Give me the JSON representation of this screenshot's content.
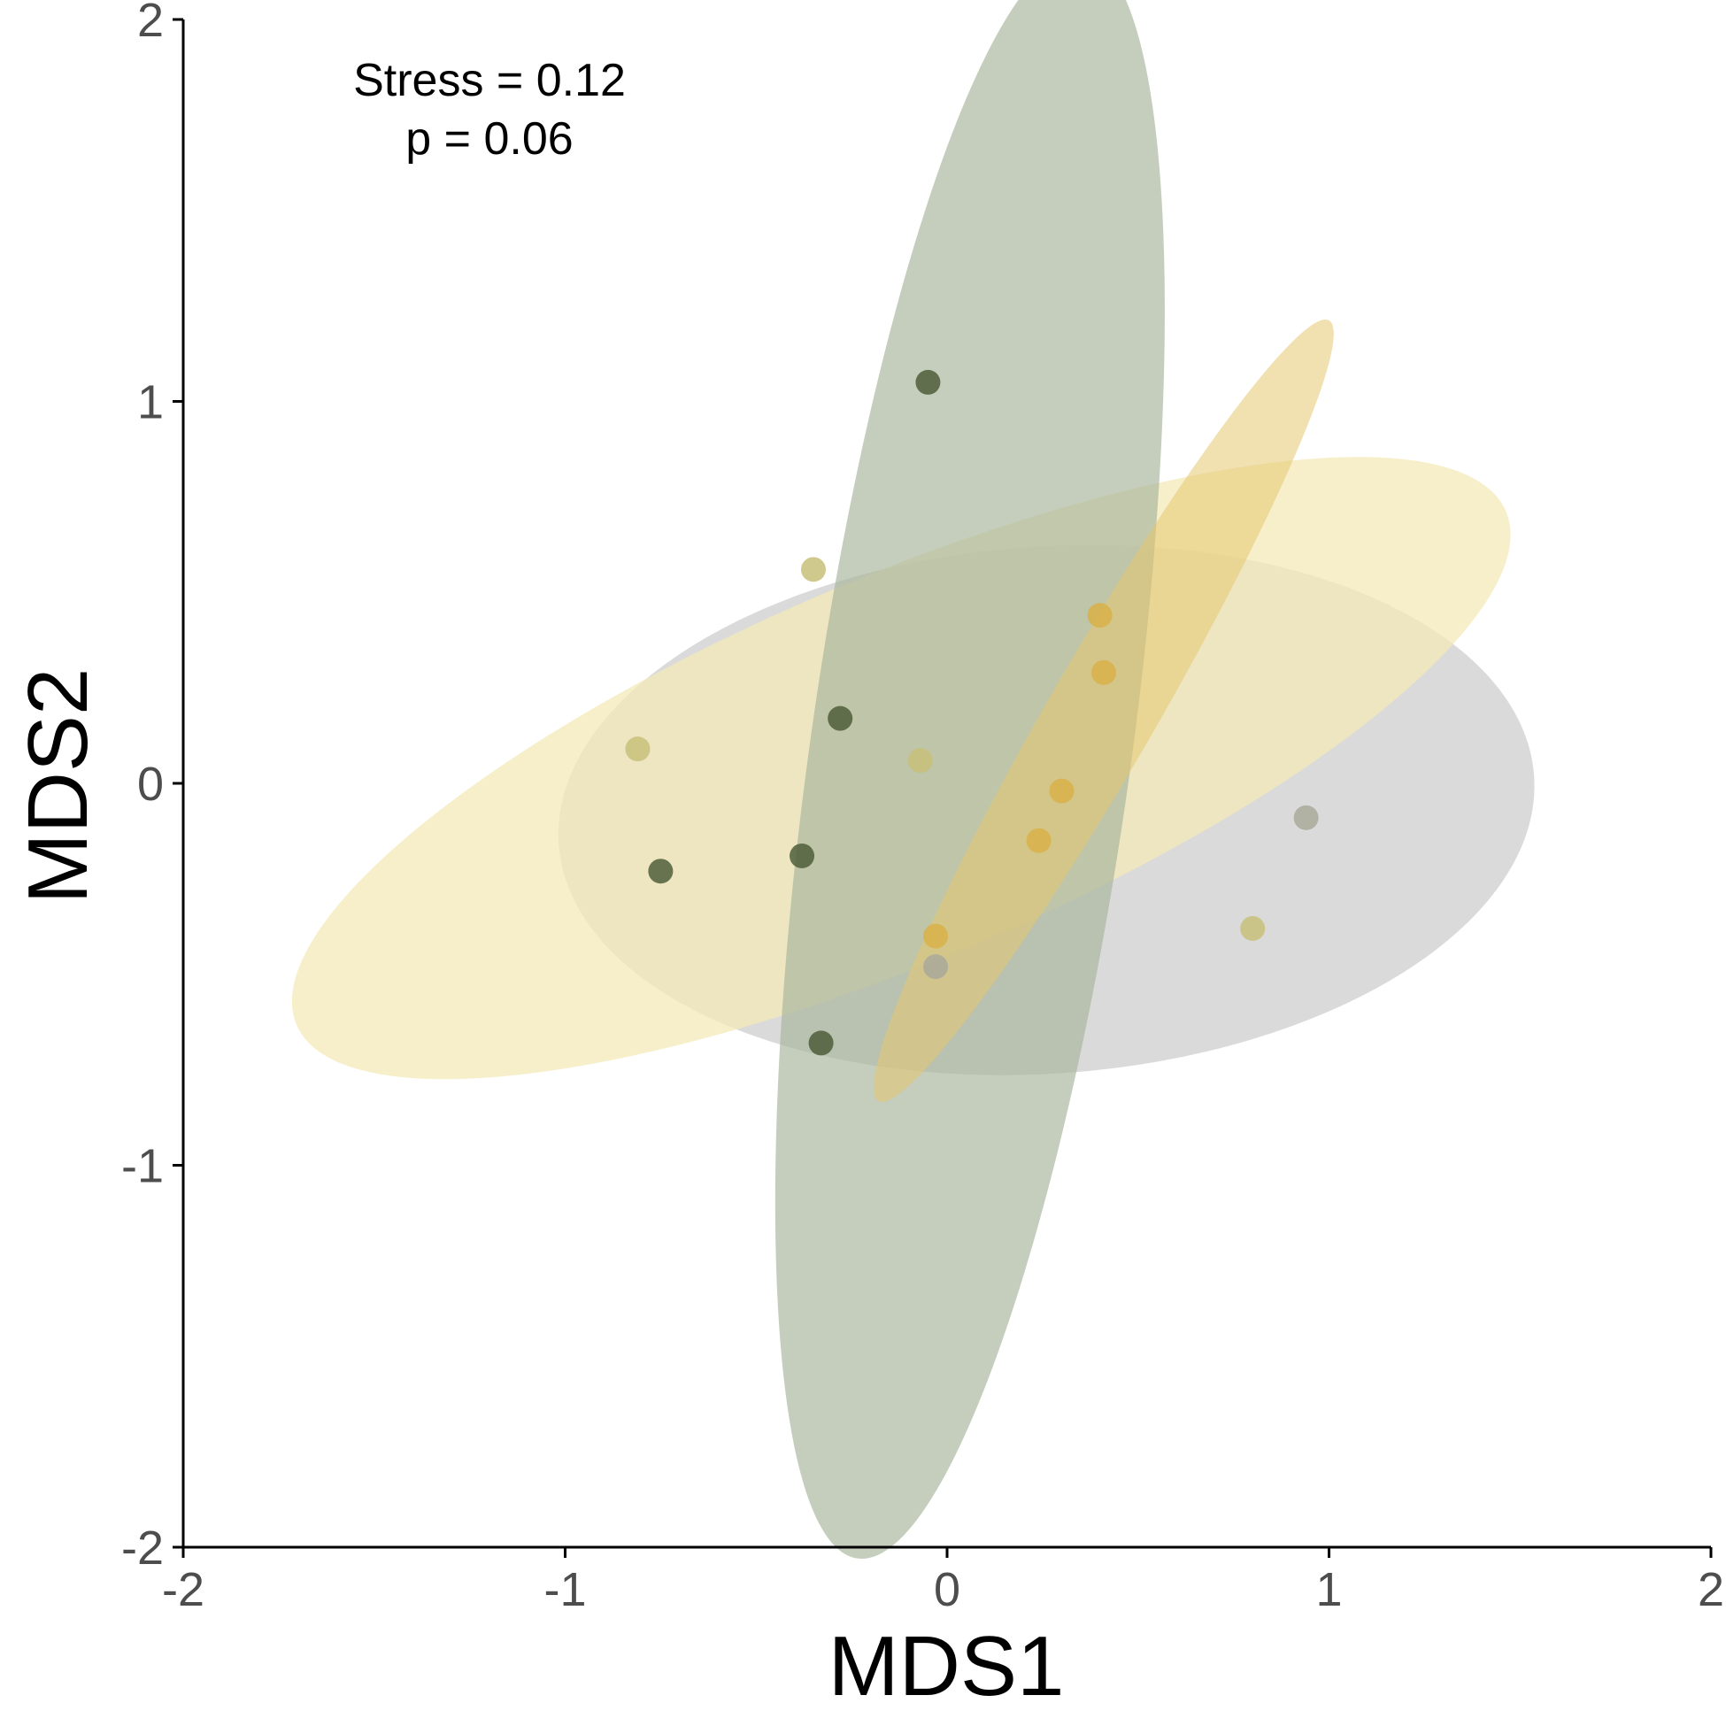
{
  "chart_data": {
    "type": "scatter",
    "title": "",
    "xlabel": "MDS1",
    "ylabel": "MDS2",
    "xlim": [
      -2,
      2
    ],
    "ylim": [
      -2,
      2
    ],
    "x_ticks": [
      -2,
      -1,
      0,
      1,
      2
    ],
    "y_ticks": [
      -2,
      -1,
      0,
      1,
      2
    ],
    "x_tick_labels": [
      "-2",
      "-1",
      "0",
      "1",
      "2"
    ],
    "y_tick_labels": [
      "-2",
      "-1",
      "0",
      "1",
      "2"
    ],
    "grid": false,
    "legend": "none",
    "annotations": [
      "Stress = 0.12",
      "p = 0.06"
    ],
    "ellipses": [
      {
        "color": "#d4d4d4",
        "opacity": 0.85,
        "cx": 0.26,
        "cy": -0.07,
        "rx": 1.28,
        "ry": 0.69,
        "angle_deg": -4
      },
      {
        "color": "#f3e9b8",
        "opacity": 0.75,
        "cx": -0.12,
        "cy": 0.04,
        "rx": 1.72,
        "ry": 0.5,
        "angle_deg": -23
      },
      {
        "color": "#a9b59c",
        "opacity": 0.68,
        "cx": 0.06,
        "cy": 0.07,
        "rx": 0.42,
        "ry": 2.12,
        "angle_deg": 8
      },
      {
        "color": "#e6c66f",
        "opacity": 0.55,
        "cx": 0.41,
        "cy": 0.19,
        "rx": 0.14,
        "ry": 1.18,
        "angle_deg": 30
      }
    ],
    "series": [
      {
        "color": "#4f5d3a",
        "x": [
          -0.05,
          -0.28,
          -0.38,
          -0.75,
          -0.33
        ],
        "y": [
          1.05,
          0.17,
          -0.19,
          -0.23,
          -0.68
        ]
      },
      {
        "color": "#a9a99a",
        "x": [
          -0.03,
          0.94
        ],
        "y": [
          -0.48,
          -0.09
        ]
      },
      {
        "color": "#c8c07a",
        "x": [
          -0.35,
          -0.81,
          -0.07,
          0.8
        ],
        "y": [
          0.56,
          0.09,
          0.06,
          -0.38
        ]
      },
      {
        "color": "#d8b04a",
        "x": [
          0.4,
          0.41,
          0.3,
          0.24,
          -0.03
        ],
        "y": [
          0.44,
          0.29,
          -0.02,
          -0.15,
          -0.4
        ]
      }
    ]
  }
}
